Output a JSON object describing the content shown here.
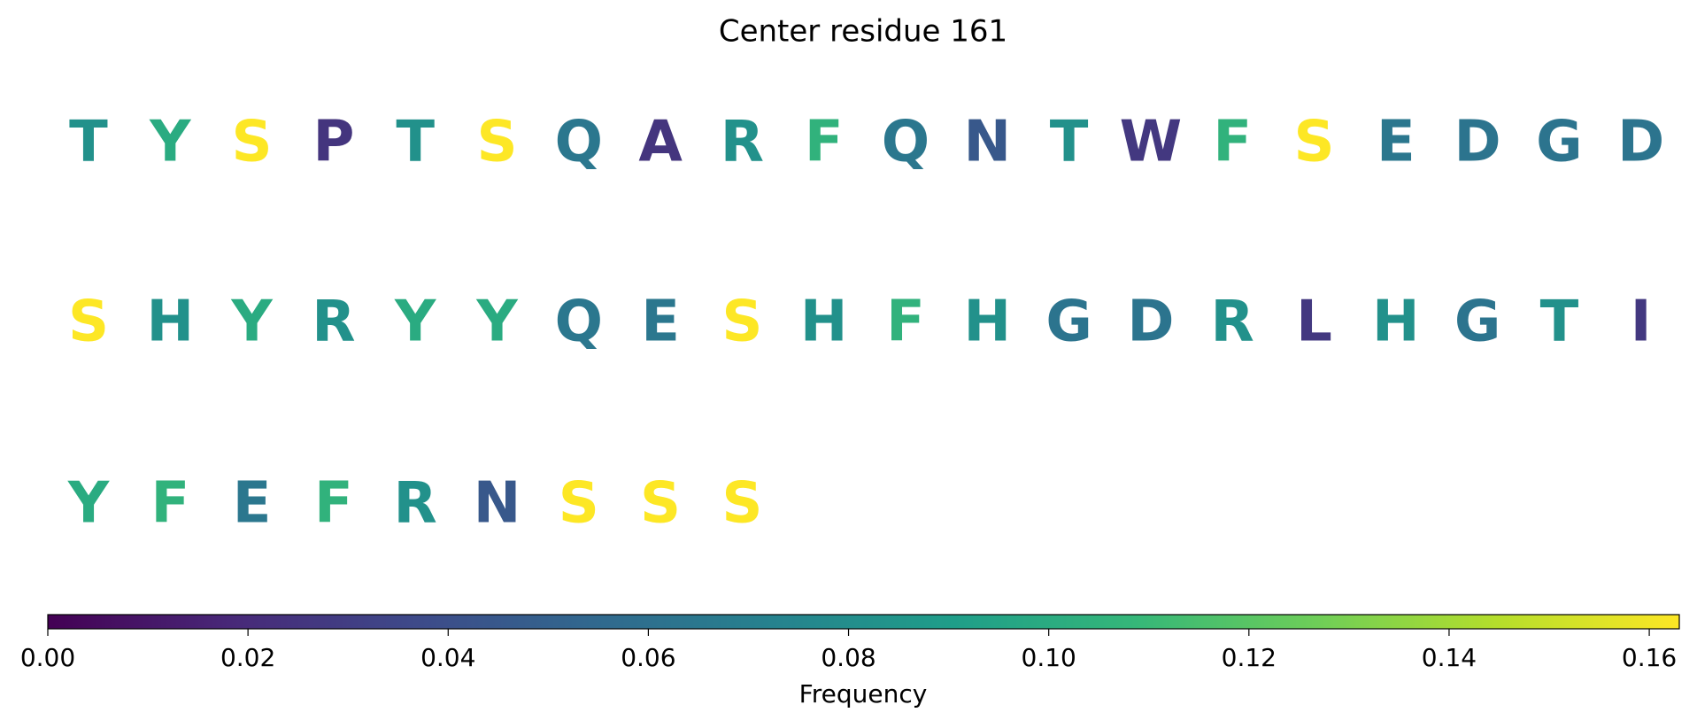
{
  "chart_data": {
    "type": "sequence-heat",
    "title": "Center residue 161",
    "categories": [
      "T",
      "Y",
      "S",
      "P",
      "T",
      "S",
      "Q",
      "A",
      "R",
      "F",
      "Q",
      "N",
      "T",
      "W",
      "F",
      "S",
      "E",
      "D",
      "G",
      "D",
      "S",
      "H",
      "Y",
      "R",
      "Y",
      "Y",
      "Q",
      "E",
      "S",
      "H",
      "F",
      "H",
      "G",
      "D",
      "R",
      "L",
      "H",
      "G",
      "T",
      "I",
      "Y",
      "F",
      "E",
      "F",
      "R",
      "N",
      "S",
      "S",
      "S"
    ],
    "values": [
      0.082,
      0.1,
      0.163,
      0.025,
      0.082,
      0.163,
      0.065,
      0.025,
      0.082,
      0.105,
      0.065,
      0.045,
      0.082,
      0.027,
      0.105,
      0.163,
      0.065,
      0.063,
      0.063,
      0.063,
      0.163,
      0.082,
      0.1,
      0.082,
      0.1,
      0.1,
      0.065,
      0.065,
      0.163,
      0.082,
      0.105,
      0.082,
      0.063,
      0.063,
      0.082,
      0.027,
      0.082,
      0.063,
      0.082,
      0.027,
      0.1,
      0.105,
      0.065,
      0.105,
      0.082,
      0.045,
      0.163,
      0.163,
      0.163
    ],
    "colormap": "viridis",
    "clim": [
      0,
      0.163
    ],
    "cticks": [
      {
        "value": 0,
        "label": "0.00"
      },
      {
        "value": 0.02,
        "label": "0.02"
      },
      {
        "value": 0.04,
        "label": "0.04"
      },
      {
        "value": 0.06,
        "label": "0.06"
      },
      {
        "value": 0.08,
        "label": "0.08"
      },
      {
        "value": 0.1,
        "label": "0.10"
      },
      {
        "value": 0.12,
        "label": "0.12"
      },
      {
        "value": 0.14,
        "label": "0.14"
      },
      {
        "value": 0.16,
        "label": "0.16"
      }
    ],
    "colorbar_label": "Frequency"
  }
}
